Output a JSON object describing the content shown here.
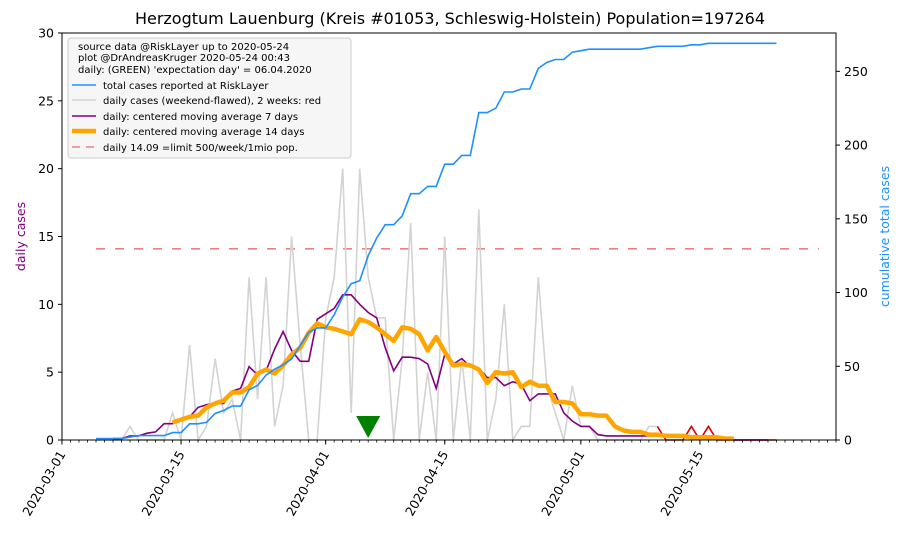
{
  "chart_data": {
    "type": "line",
    "title": "Herzogtum Lauenburg (Kreis #01053, Schleswig-Holstein) Population=197264",
    "ylabel_left": "daily cases",
    "ylabel_right": "cumulative total cases",
    "colors": {
      "left_label": "#800080",
      "right_label": "#1e90ff",
      "total": "#1e90ff",
      "daily": "#d3d3d3",
      "daily_recent": "#dd0000",
      "ma7": "#800080",
      "ma14": "#ffa500",
      "limit": "#f08080",
      "expectation": "#008000"
    },
    "x_range": [
      "2020-03-01",
      "2020-05-31"
    ],
    "x_ticks": [
      "2020-03-01",
      "2020-03-15",
      "2020-04-01",
      "2020-04-15",
      "2020-05-01",
      "2020-05-15"
    ],
    "ylim_left": [
      0,
      30
    ],
    "yticks_left": [
      "0",
      "5",
      "10",
      "15",
      "20",
      "25",
      "30"
    ],
    "ylim_right": [
      0,
      276
    ],
    "yticks_right": [
      "0",
      "50",
      "100",
      "150",
      "200",
      "250"
    ],
    "legend": {
      "position": "top-left",
      "header": [
        "source data @RiskLayer up to 2020-05-24",
        "plot @DrAndreasKruger 2020-05-24 00:43",
        "daily: (GREEN) 'expectation day' = 06.04.2020"
      ],
      "entries": [
        {
          "label": "total cases reported at RiskLayer",
          "color": "#1e90ff",
          "style": "line"
        },
        {
          "label": "daily cases (weekend-flawed), 2 weeks: red",
          "color": "#d3d3d3",
          "style": "line"
        },
        {
          "label": "daily: centered moving average 7 days",
          "color": "#800080",
          "style": "line"
        },
        {
          "label": "daily: centered moving average 14 days",
          "color": "#ffa500",
          "style": "thick"
        },
        {
          "label": "daily 14.09 =limit 500/week/1mio pop.",
          "color": "#f08080",
          "style": "dashed"
        }
      ]
    },
    "limit_value": 14.09,
    "limit_x_range": [
      "2020-03-05",
      "2020-05-29"
    ],
    "expectation_day": "2020-04-06",
    "total_cases": {
      "x": [
        "2020-03-05",
        "2020-03-06",
        "2020-03-07",
        "2020-03-08",
        "2020-03-09",
        "2020-03-10",
        "2020-03-11",
        "2020-03-12",
        "2020-03-13",
        "2020-03-14",
        "2020-03-15",
        "2020-03-16",
        "2020-03-17",
        "2020-03-18",
        "2020-03-19",
        "2020-03-20",
        "2020-03-21",
        "2020-03-22",
        "2020-03-23",
        "2020-03-24",
        "2020-03-25",
        "2020-03-26",
        "2020-03-27",
        "2020-03-28",
        "2020-03-29",
        "2020-03-30",
        "2020-03-31",
        "2020-04-01",
        "2020-04-02",
        "2020-04-03",
        "2020-04-04",
        "2020-04-05",
        "2020-04-06",
        "2020-04-07",
        "2020-04-08",
        "2020-04-09",
        "2020-04-10",
        "2020-04-11",
        "2020-04-12",
        "2020-04-13",
        "2020-04-14",
        "2020-04-15",
        "2020-04-16",
        "2020-04-17",
        "2020-04-18",
        "2020-04-19",
        "2020-04-20",
        "2020-04-21",
        "2020-04-22",
        "2020-04-23",
        "2020-04-24",
        "2020-04-25",
        "2020-04-26",
        "2020-04-27",
        "2020-04-28",
        "2020-04-29",
        "2020-04-30",
        "2020-05-01",
        "2020-05-02",
        "2020-05-03",
        "2020-05-04",
        "2020-05-05",
        "2020-05-06",
        "2020-05-07",
        "2020-05-08",
        "2020-05-09",
        "2020-05-10",
        "2020-05-11",
        "2020-05-12",
        "2020-05-13",
        "2020-05-14",
        "2020-05-15",
        "2020-05-16",
        "2020-05-17",
        "2020-05-18",
        "2020-05-19",
        "2020-05-20",
        "2020-05-21",
        "2020-05-22",
        "2020-05-23",
        "2020-05-24"
      ],
      "values": [
        1,
        1,
        1,
        1,
        2,
        3,
        3,
        3,
        3,
        5,
        5,
        11,
        11,
        12,
        18,
        20,
        23,
        23,
        34,
        37,
        44,
        48,
        51,
        55,
        64,
        73,
        76,
        76,
        85,
        97,
        106,
        108,
        125,
        137,
        146,
        146,
        152,
        167,
        167,
        172,
        172,
        187,
        187,
        193,
        193,
        222,
        222,
        225,
        236,
        236,
        238,
        238,
        252,
        256,
        258,
        258,
        263,
        264,
        265,
        265,
        265,
        265,
        265,
        265,
        265,
        266,
        267,
        267,
        267,
        267,
        268,
        268,
        269,
        269,
        269,
        269,
        269,
        269,
        269,
        269,
        269
      ]
    },
    "daily_cases": {
      "x_start": "2020-03-05",
      "values": [
        0,
        0,
        0,
        0,
        1,
        0,
        0,
        0,
        0,
        2,
        0,
        7,
        0,
        1,
        6,
        2,
        3,
        0,
        12,
        3,
        12,
        1,
        4,
        15,
        7,
        0,
        0,
        9,
        12,
        20,
        2,
        20,
        12,
        9,
        9,
        0,
        6,
        16,
        0,
        5,
        0,
        15,
        0,
        6,
        0,
        17,
        0,
        3,
        10,
        0,
        1,
        1,
        12,
        4,
        2,
        0,
        4,
        1,
        1,
        0,
        0,
        0,
        0,
        0,
        0,
        1,
        1,
        0,
        0,
        0,
        1,
        0,
        1,
        0,
        0,
        0,
        0,
        0,
        0,
        0,
        0
      ],
      "recent_from": "2020-05-10"
    },
    "ma7": {
      "x_start": "2020-03-07",
      "values": [
        0.1,
        0.1,
        0.3,
        0.3,
        0.5,
        0.6,
        1.2,
        1.2,
        1.6,
        1.7,
        2.4,
        2.6,
        2.7,
        2.7,
        3.6,
        3.8,
        5.4,
        4.8,
        5.1,
        6.7,
        8.0,
        6.6,
        5.8,
        5.8,
        8.9,
        9.3,
        9.7,
        10.7,
        10.7,
        10.0,
        9.4,
        9.0,
        6.8,
        5.1,
        6.1,
        6.1,
        6.0,
        5.6,
        3.8,
        6.3,
        5.6,
        6.0,
        5.4,
        5.3,
        4.6,
        4.6,
        4.0,
        4.3,
        4.1,
        2.9,
        3.4,
        3.4,
        3.4,
        2.0,
        1.4,
        1.0,
        1.0,
        0.4,
        0.3,
        0.3,
        0.3,
        0.3,
        0.3,
        0.3,
        0.3,
        0.3,
        0.3,
        0.3,
        0.1,
        0.1,
        0.1,
        0.1,
        0.1,
        0.0,
        0.0,
        0.0,
        0.0,
        0.0
      ]
    },
    "ma14": {
      "x_start": "2020-03-14",
      "values": [
        1.3,
        1.5,
        1.7,
        1.8,
        2.4,
        2.7,
        2.9,
        3.5,
        3.5,
        3.9,
        4.9,
        5.2,
        4.9,
        5.5,
        6.3,
        6.8,
        7.9,
        8.6,
        8.3,
        8.2,
        8.0,
        7.8,
        8.9,
        8.7,
        8.3,
        7.8,
        7.3,
        8.3,
        8.2,
        7.8,
        6.6,
        7.6,
        6.5,
        5.5,
        5.6,
        5.5,
        5.2,
        4.2,
        5.0,
        4.9,
        5.0,
        3.9,
        4.3,
        4.0,
        4.0,
        2.8,
        2.8,
        2.7,
        1.9,
        1.9,
        1.8,
        1.8,
        1.0,
        0.7,
        0.6,
        0.6,
        0.4,
        0.4,
        0.3,
        0.3,
        0.3,
        0.2,
        0.2,
        0.2,
        0.2,
        0.1,
        0.1
      ]
    }
  }
}
